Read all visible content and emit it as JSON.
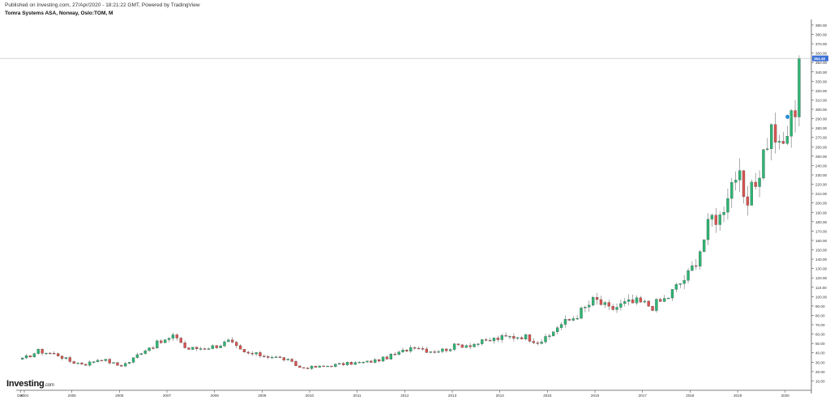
{
  "header": {
    "published": "Published on Investing.com, 27/Apr/2020 - 18:21:22 GMT, Powered by TradingView",
    "symbol": "Tomra Systems ASA, Norway, Oslo:TOM, M"
  },
  "logo": {
    "brand": "Investing",
    "suffix": ".com"
  },
  "colors": {
    "up": "#2bb673",
    "down": "#d9534f",
    "price_tag": "#3c6fd6",
    "marker": "#2a8fd6"
  },
  "chart_data": {
    "type": "candlestick",
    "title": "Tomra Systems ASA, Norway, Oslo:TOM, M",
    "x_ticks": [
      "Dec",
      "2004",
      "2005",
      "2006",
      "2007",
      "2008",
      "2009",
      "2010",
      "2011",
      "2012",
      "2013",
      "2014",
      "2015",
      "2016",
      "2017",
      "2018",
      "2019",
      "2020"
    ],
    "y_ticks": [
      10,
      20,
      30,
      40,
      50,
      60,
      70,
      80,
      90,
      100,
      110,
      120,
      130,
      140,
      150,
      160,
      170,
      180,
      190,
      200,
      210,
      220,
      230,
      240,
      250,
      260,
      270,
      280,
      290,
      300,
      310,
      320,
      330,
      340,
      350,
      360,
      370,
      380,
      390
    ],
    "y_tick_labels": [
      "10.00",
      "20.00",
      "30.00",
      "40.00",
      "50.00",
      "60.00",
      "70.00",
      "80.00",
      "90.00",
      "100.00",
      "110.00",
      "120.00",
      "130.00",
      "140.00",
      "150.00",
      "160.00",
      "170.00",
      "180.00",
      "190.00",
      "200.00",
      "210.00",
      "220.00",
      "230.00",
      "240.00",
      "250.00",
      "260.00",
      "270.00",
      "280.00",
      "290.00",
      "300.00",
      "310.00",
      "320.00",
      "330.00",
      "340.00",
      "350.00",
      "360.00",
      "370.00",
      "380.00",
      "390.00"
    ],
    "ylim": [
      0,
      396
    ],
    "last_price": 354.4,
    "last_price_label": "354.40",
    "grid": false,
    "interval": "M",
    "points": [
      [
        2003.96,
        33
      ],
      [
        2004.3,
        42
      ],
      [
        2004.5,
        40
      ],
      [
        2004.7,
        38
      ],
      [
        2005.0,
        30
      ],
      [
        2005.3,
        28
      ],
      [
        2005.6,
        34
      ],
      [
        2006.0,
        26
      ],
      [
        2006.2,
        30
      ],
      [
        2006.5,
        43
      ],
      [
        2006.8,
        50
      ],
      [
        2006.95,
        53
      ],
      [
        2007.2,
        58
      ],
      [
        2007.4,
        44
      ],
      [
        2007.7,
        45
      ],
      [
        2008.0,
        47
      ],
      [
        2008.3,
        52
      ],
      [
        2008.6,
        40
      ],
      [
        2008.9,
        38
      ],
      [
        2009.2,
        36
      ],
      [
        2009.5,
        33
      ],
      [
        2009.8,
        24
      ],
      [
        2010.2,
        25
      ],
      [
        2010.5,
        27
      ],
      [
        2010.9,
        29
      ],
      [
        2011.2,
        30
      ],
      [
        2011.5,
        33
      ],
      [
        2011.9,
        40
      ],
      [
        2012.2,
        48
      ],
      [
        2012.5,
        42
      ],
      [
        2012.8,
        43
      ],
      [
        2013.1,
        48
      ],
      [
        2013.4,
        49
      ],
      [
        2013.7,
        52
      ],
      [
        2013.9,
        55
      ],
      [
        2014.2,
        57
      ],
      [
        2014.5,
        58
      ],
      [
        2014.8,
        52
      ],
      [
        2015.0,
        55
      ],
      [
        2015.2,
        68
      ],
      [
        2015.5,
        76
      ],
      [
        2015.8,
        88
      ],
      [
        2016.0,
        97
      ],
      [
        2016.3,
        86
      ],
      [
        2016.6,
        92
      ],
      [
        2016.9,
        94
      ],
      [
        2017.2,
        90
      ],
      [
        2017.5,
        98
      ],
      [
        2017.8,
        115
      ],
      [
        2018.0,
        125
      ],
      [
        2018.2,
        150
      ],
      [
        2018.35,
        170
      ],
      [
        2018.5,
        190
      ],
      [
        2018.6,
        180
      ],
      [
        2018.8,
        215
      ],
      [
        2019.0,
        235
      ],
      [
        2019.15,
        190
      ],
      [
        2019.4,
        225
      ],
      [
        2019.6,
        265
      ],
      [
        2019.75,
        282
      ],
      [
        2019.9,
        250
      ],
      [
        2020.0,
        270
      ],
      [
        2020.1,
        285
      ],
      [
        2020.2,
        300
      ],
      [
        2020.3,
        354.4
      ]
    ]
  }
}
